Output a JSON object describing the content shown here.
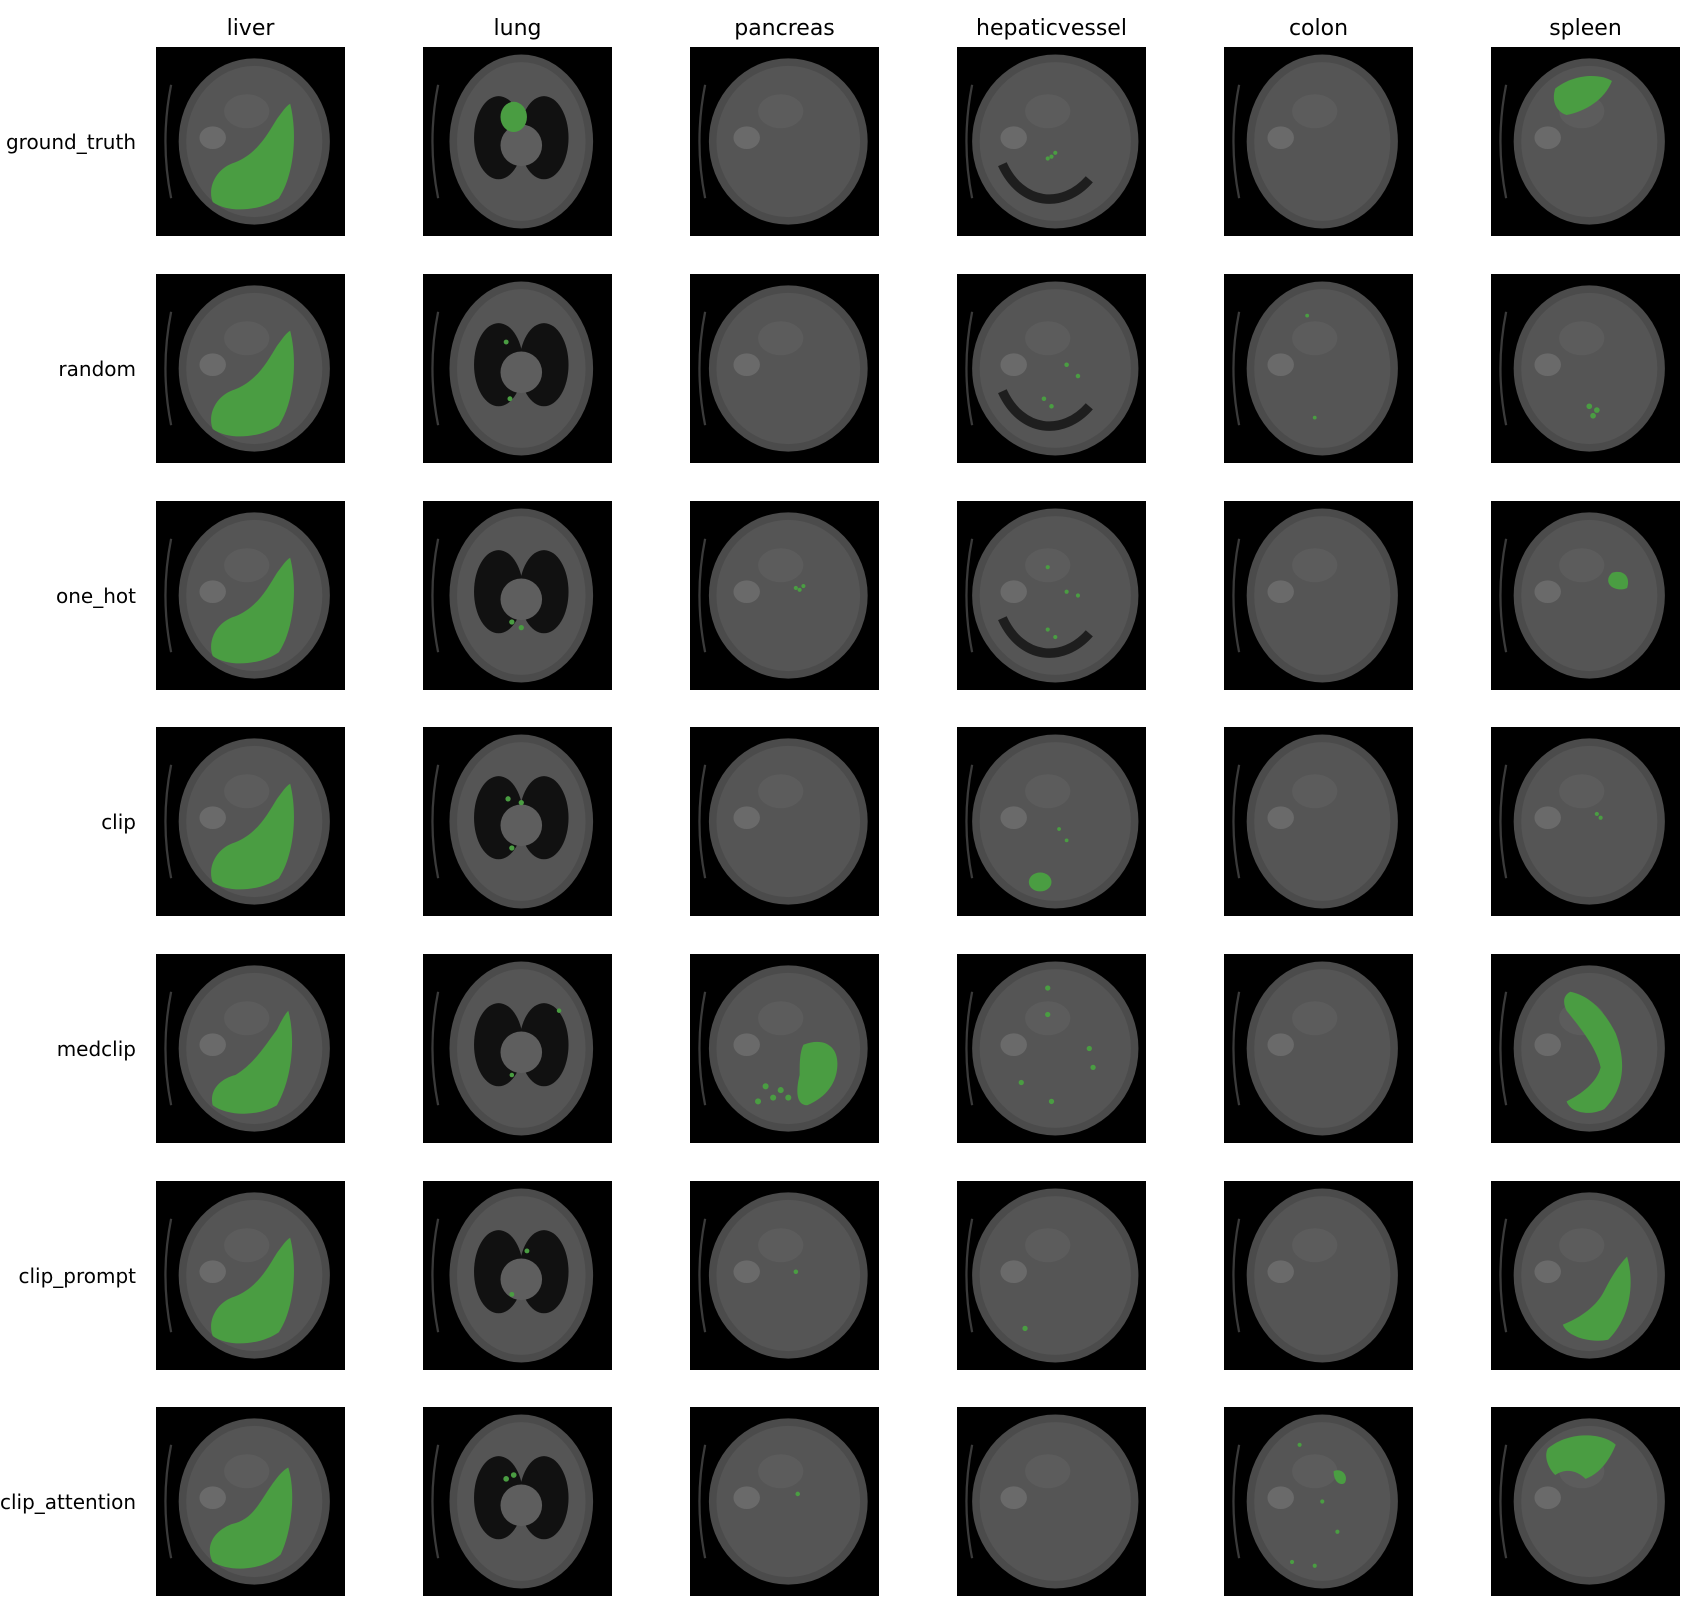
{
  "figure": {
    "columns": [
      "liver",
      "lung",
      "pancreas",
      "hepaticvessel",
      "colon",
      "spleen"
    ],
    "rows": [
      "ground_truth",
      "random",
      "one_hot",
      "clip",
      "medclip",
      "clip_prompt",
      "clip_attention"
    ]
  },
  "colors": {
    "panel_background": "#000000",
    "body_tissue": "#555555",
    "overlay": "#4a9d42"
  },
  "panel_content": "axial CT slice with green segmentation overlay"
}
